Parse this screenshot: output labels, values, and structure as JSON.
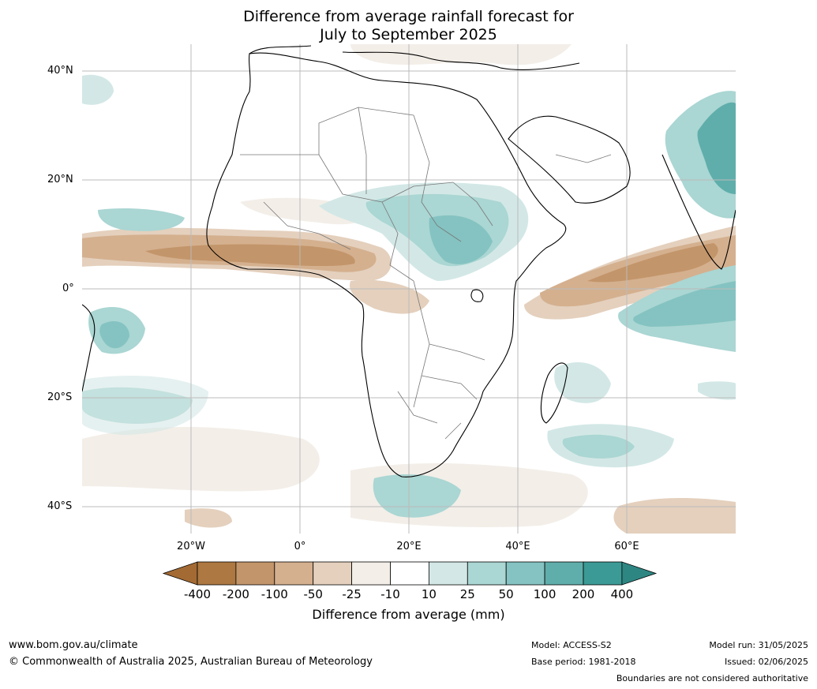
{
  "title": {
    "line1": "Difference from average rainfall forecast for",
    "line2": "July to September 2025"
  },
  "map": {
    "lat_labels": [
      "40°N",
      "20°N",
      "0°",
      "20°S",
      "40°S"
    ],
    "lon_labels": [
      "20°W",
      "0°",
      "20°E",
      "40°E",
      "60°E"
    ]
  },
  "colorbar": {
    "ticks": [
      "-400",
      "-200",
      "-100",
      "-50",
      "-25",
      "-10",
      "10",
      "25",
      "50",
      "100",
      "200",
      "400"
    ],
    "colors": [
      "#a36a34",
      "#ad7841",
      "#c3956a",
      "#d4b08f",
      "#e4d0bd",
      "#f3eee8",
      "#ffffff",
      "#d3e8e6",
      "#aad6d3",
      "#84c3c1",
      "#5faeab",
      "#3b9a96",
      "#2e8682"
    ],
    "title": "Difference from average (mm)"
  },
  "footer": {
    "website": "www.bom.gov.au/climate",
    "copyright": "© Commonwealth of Australia 2025, Australian Bureau of Meteorology",
    "model": "Model: ACCESS-S2",
    "base_period": "Base period: 1981-2018",
    "model_run": "Model run: 31/05/2025",
    "issued": "Issued: 02/06/2025",
    "disclaimer": "Boundaries are not considered authoritative"
  }
}
